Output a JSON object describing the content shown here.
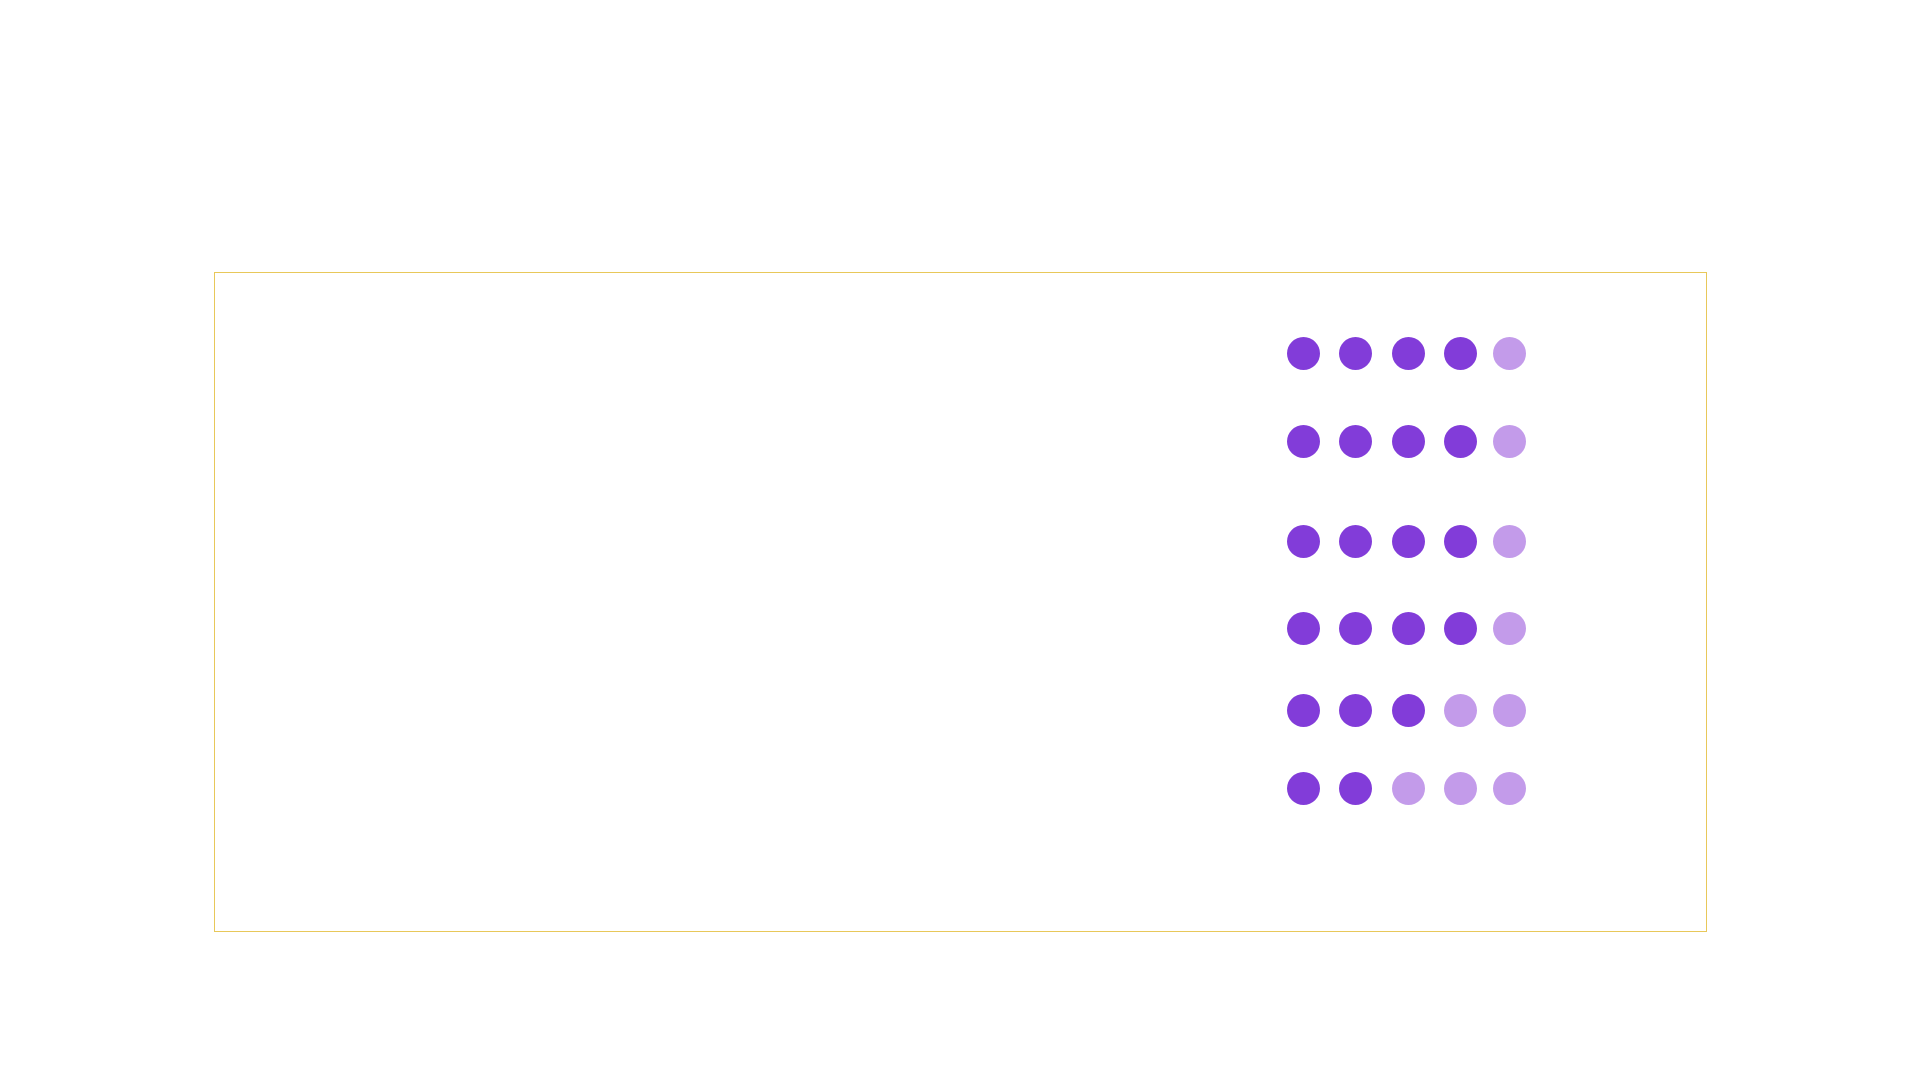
{
  "colors": {
    "background": "#ffffff",
    "frame_border": "#e8c85a",
    "dot_filled": "#823cd9",
    "dot_empty": "#c39bea"
  },
  "ratings": {
    "max": 5,
    "rows": [
      {
        "filled": 4
      },
      {
        "filled": 4
      },
      {
        "filled": 4
      },
      {
        "filled": 4
      },
      {
        "filled": 3
      },
      {
        "filled": 2
      }
    ]
  }
}
